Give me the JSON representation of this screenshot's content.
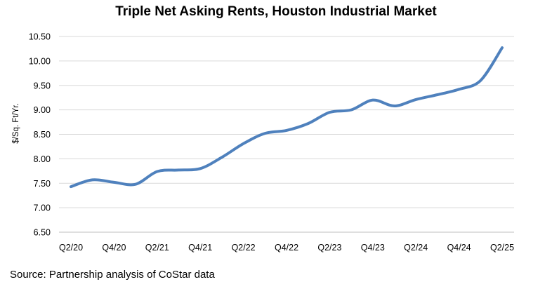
{
  "chart_data": {
    "type": "line",
    "title": "Triple Net Asking Rents, Houston Industrial Market",
    "ylabel": "$/Sq. Ft/Yr.",
    "xlabel": "",
    "ylim": [
      6.5,
      10.5
    ],
    "ytick_step": 0.5,
    "grid": true,
    "legend": "none",
    "x_tick_labels": [
      "Q2/20",
      "Q4/20",
      "Q2/21",
      "Q4/21",
      "Q2/22",
      "Q4/22",
      "Q2/23",
      "Q4/23",
      "Q2/24",
      "Q4/24",
      "Q2/25"
    ],
    "x": [
      "Q2/20",
      "Q3/20",
      "Q4/20",
      "Q1/21",
      "Q2/21",
      "Q3/21",
      "Q4/21",
      "Q1/22",
      "Q2/22",
      "Q3/22",
      "Q4/22",
      "Q1/23",
      "Q2/23",
      "Q3/23",
      "Q4/23",
      "Q1/24",
      "Q2/24",
      "Q3/24",
      "Q4/24",
      "Q1/25",
      "Q2/25"
    ],
    "series": [
      {
        "values": [
          7.43,
          7.57,
          7.52,
          7.48,
          7.74,
          7.77,
          7.8,
          8.03,
          8.31,
          8.52,
          8.58,
          8.72,
          8.95,
          9.0,
          9.2,
          9.08,
          9.21,
          9.31,
          9.42,
          9.6,
          10.27
        ],
        "color": "#4f81bd"
      }
    ]
  },
  "source": "Source: Partnership analysis of CoStar data"
}
